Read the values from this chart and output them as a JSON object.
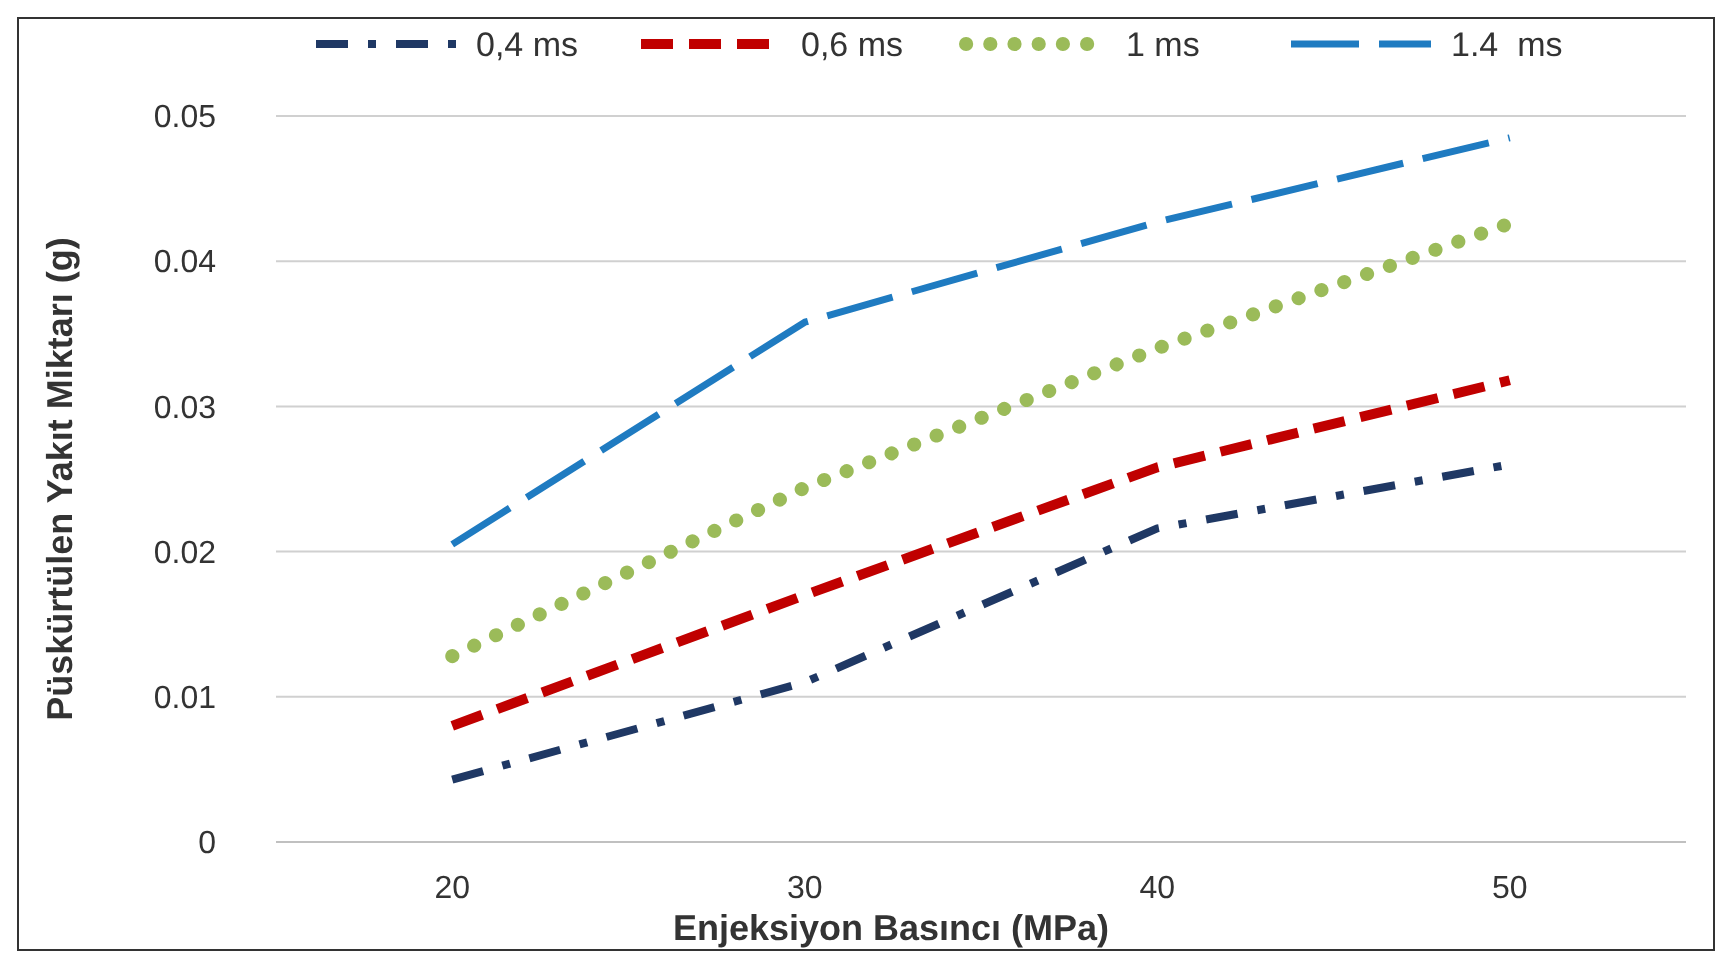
{
  "chart_data": {
    "type": "line",
    "xlabel": "Enjeksiyon Basıncı (MPa)",
    "ylabel": "Püskürtülen Yakıt Miktarı (g)",
    "x": [
      20,
      30,
      40,
      50
    ],
    "xlim": [
      15,
      55
    ],
    "xticks": [
      20,
      30,
      40,
      50
    ],
    "ylim": [
      0,
      0.05
    ],
    "yticks": [
      0,
      0.01,
      0.02,
      0.03,
      0.04,
      0.05
    ],
    "grid": "y",
    "legend": "top",
    "marker": "none",
    "series": [
      {
        "name": "0,4 ms",
        "color": "#1f3864",
        "line_style": "dashdot",
        "values": [
          0.0043,
          0.011,
          0.0216,
          0.026
        ]
      },
      {
        "name": "0,6 ms",
        "color": "#c00000",
        "line_style": "dashed",
        "values": [
          0.008,
          0.017,
          0.0258,
          0.0318
        ]
      },
      {
        "name": "1 ms",
        "color": "#9bbb59",
        "line_style": "dotted",
        "values": [
          0.0128,
          0.0244,
          0.034,
          0.0426
        ]
      },
      {
        "name": "1.4  ms",
        "color": "#1f7bc1",
        "line_style": "longdash",
        "values": [
          0.0205,
          0.0358,
          0.0427,
          0.0485
        ]
      }
    ]
  }
}
